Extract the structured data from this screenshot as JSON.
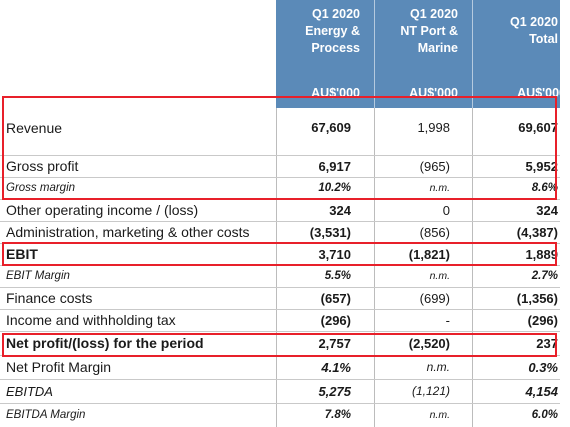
{
  "header": {
    "columns": [
      {
        "lines": [
          "Q1 2020",
          "Energy &",
          "Process"
        ],
        "unit": "AU$'000"
      },
      {
        "lines": [
          "Q1 2020",
          "NT Port &",
          "Marine"
        ],
        "unit": "AU$'000"
      },
      {
        "lines": [
          "Q1 2020",
          "Total"
        ],
        "unit": "AU$'000"
      }
    ]
  },
  "rows": [
    {
      "label": "Revenue",
      "values": [
        "67,609",
        "1,998",
        "69,607"
      ]
    },
    {
      "label": "Gross profit",
      "values": [
        "6,917",
        "(965)",
        "5,952"
      ]
    },
    {
      "label": "Gross margin",
      "values": [
        "10.2%",
        "n.m.",
        "8.6%"
      ]
    },
    {
      "label": "Other operating income / (loss)",
      "values": [
        "324",
        "0",
        "324"
      ]
    },
    {
      "label": "Administration, marketing & other costs",
      "values": [
        "(3,531)",
        "(856)",
        "(4,387)"
      ]
    },
    {
      "label": "EBIT",
      "values": [
        "3,710",
        "(1,821)",
        "1,889"
      ]
    },
    {
      "label": "EBIT Margin",
      "values": [
        "5.5%",
        "n.m.",
        "2.7%"
      ]
    },
    {
      "label": "Finance costs",
      "values": [
        "(657)",
        "(699)",
        "(1,356)"
      ]
    },
    {
      "label": "Income and withholding tax",
      "values": [
        "(296)",
        "-",
        "(296)"
      ]
    },
    {
      "label": "Net profit/(loss) for the period",
      "values": [
        "2,757",
        "(2,520)",
        "237"
      ]
    },
    {
      "label": "Net Profit Margin",
      "values": [
        "4.1%",
        "n.m.",
        "0.3%"
      ]
    },
    {
      "label": "EBITDA",
      "values": [
        "5,275",
        "(1,121)",
        "4,154"
      ]
    },
    {
      "label": "EBITDA Margin",
      "values": [
        "7.8%",
        "n.m.",
        "6.0%"
      ]
    }
  ]
}
